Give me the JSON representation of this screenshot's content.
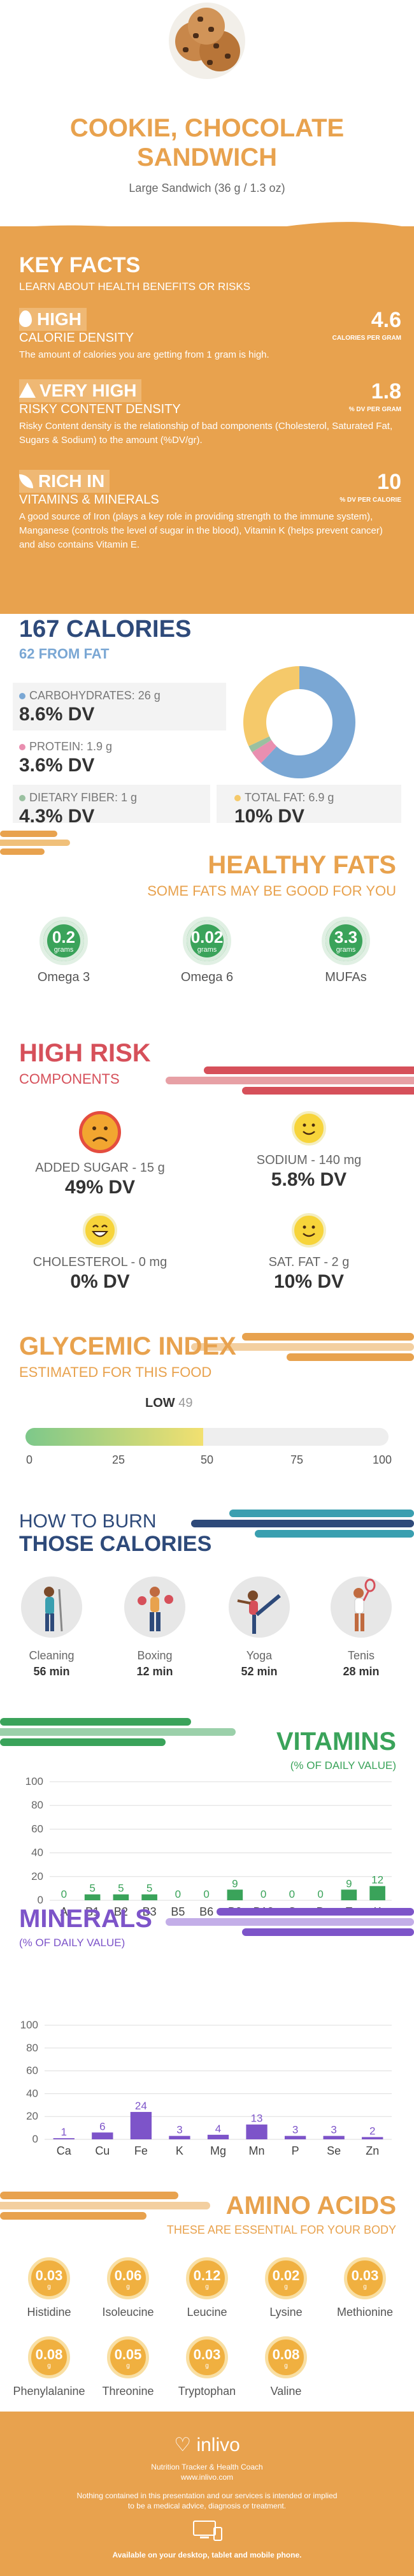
{
  "header": {
    "title_line1": "COOKIE, CHOCOLATE",
    "title_line2": "SANDWICH",
    "serving": "Large Sandwich (36 g / 1.3 oz)"
  },
  "key_facts": {
    "heading": "KEY FACTS",
    "subheading": "LEARN ABOUT HEALTH BENEFITS OR RISKS",
    "facts": [
      {
        "tag": "HIGH",
        "tag2": "CALORIE DENSITY",
        "value": "4.6",
        "unit": "CALORIES PER GRAM",
        "desc": "The amount of calories you are getting from 1 gram is high.",
        "icon": "flame-icon"
      },
      {
        "tag": "VERY HIGH",
        "tag2": "RISKY CONTENT DENSITY",
        "value": "1.8",
        "unit": "% DV PER GRAM",
        "desc": "Risky Content density is the relationship of bad components (Cholesterol, Saturated Fat, Sugars & Sodium) to the amount (%DV/gr).",
        "icon": "warning-icon"
      },
      {
        "tag": "RICH  IN",
        "tag2": "VITAMINS & MINERALS",
        "value": "10",
        "unit": "% DV PER CALORIE",
        "desc": "A good source of Iron (plays a key role in providing strength to the immune system), Manganese (controls the level of sugar in the blood), Vitamin K (helps prevent cancer) and also contains Vitamin E.",
        "icon": "leaf-icon"
      }
    ]
  },
  "calories": {
    "heading": "167 CALORIES",
    "from_fat": "62 FROM FAT",
    "macros": [
      {
        "label": "CARBOHYDRATES: 26 g",
        "dv": "8.6% DV",
        "color": "#7aa7d4"
      },
      {
        "label": "PROTEIN: 1.9 g",
        "dv": "3.6% DV",
        "color": "#e98fb0"
      },
      {
        "label": "DIETARY FIBER: 1 g",
        "dv": "4.3% DV",
        "color": "#9ac0a0"
      },
      {
        "label": "TOTAL FAT: 6.9 g",
        "dv": "10% DV",
        "color": "#f5c96a"
      }
    ],
    "donut": {
      "carbs": 62,
      "protein": 4,
      "fiber": 2,
      "fat": 32
    }
  },
  "healthy_fats": {
    "heading": "HEALTHY FATS",
    "subheading": "SOME FATS MAY BE GOOD FOR YOU",
    "unit": "grams",
    "items": [
      {
        "value": "0.2",
        "label": "Omega 3"
      },
      {
        "value": "0.02",
        "label": "Omega 6"
      },
      {
        "value": "3.3",
        "label": "MUFAs"
      }
    ]
  },
  "high_risk": {
    "heading": "HIGH RISK",
    "subheading": "COMPONENTS",
    "items": [
      {
        "label": "ADDED SUGAR - 15 g",
        "dv": "49% DV",
        "face": "sad"
      },
      {
        "label": "SODIUM - 140 mg",
        "dv": "5.8% DV",
        "face": "happy"
      },
      {
        "label": "CHOLESTEROL - 0 mg",
        "dv": "0% DV",
        "face": "laugh"
      },
      {
        "label": "SAT. FAT - 2 g",
        "dv": "10% DV",
        "face": "happy"
      }
    ]
  },
  "glycemic": {
    "heading": "GLYCEMIC INDEX",
    "subheading": "ESTIMATED FOR THIS FOOD",
    "level": "LOW",
    "value": "49",
    "fraction": 0.49,
    "ticks": [
      "0",
      "25",
      "50",
      "75",
      "100"
    ]
  },
  "burn": {
    "heading1": "HOW TO BURN",
    "heading2": "THOSE CALORIES",
    "activities": [
      {
        "name": "Cleaning",
        "time": "56 min"
      },
      {
        "name": "Boxing",
        "time": "12 min"
      },
      {
        "name": "Yoga",
        "time": "52 min"
      },
      {
        "name": "Tenis",
        "time": "28 min"
      }
    ]
  },
  "vitamins": {
    "heading": "VITAMINS",
    "subheading": "(% OF DAILY VALUE)"
  },
  "minerals": {
    "heading": "MINERALS",
    "subheading": "(% OF DAILY VALUE)"
  },
  "chart_data": [
    {
      "type": "bar",
      "title": "VITAMINS",
      "ylabel": "(% OF DAILY VALUE)",
      "categories": [
        "A",
        "B1",
        "B2",
        "B3",
        "B5",
        "B6",
        "B9",
        "B12",
        "C",
        "D",
        "E",
        "K"
      ],
      "values": [
        0,
        5,
        5,
        5,
        0,
        0,
        9,
        0,
        0,
        0,
        9,
        12
      ],
      "ylim": [
        0,
        100
      ],
      "yticks": [
        "0",
        "20",
        "40",
        "60",
        "80",
        "100"
      ],
      "color": "#3aa35a"
    },
    {
      "type": "bar",
      "title": "MINERALS",
      "ylabel": "(% OF DAILY VALUE)",
      "categories": [
        "Ca",
        "Cu",
        "Fe",
        "K",
        "Mg",
        "Mn",
        "P",
        "Se",
        "Zn"
      ],
      "values": [
        1,
        6,
        24,
        3,
        4,
        13,
        3,
        3,
        2
      ],
      "ylim": [
        0,
        100
      ],
      "yticks": [
        "0",
        "20",
        "40",
        "60",
        "80",
        "100"
      ],
      "color": "#7d54c9"
    }
  ],
  "amino": {
    "heading": "AMINO ACIDS",
    "subheading": "THESE ARE ESSENTIAL FOR YOUR BODY",
    "unit": "g",
    "items": [
      {
        "value": "0.03",
        "label": "Histidine"
      },
      {
        "value": "0.06",
        "label": "Isoleucine"
      },
      {
        "value": "0.12",
        "label": "Leucine"
      },
      {
        "value": "0.02",
        "label": "Lysine"
      },
      {
        "value": "0.03",
        "label": "Methionine"
      },
      {
        "value": "0.08",
        "label": "Phenylalanine"
      },
      {
        "value": "0.05",
        "label": "Threonine"
      },
      {
        "value": "0.03",
        "label": "Tryptophan"
      },
      {
        "value": "0.08",
        "label": "Valine"
      }
    ]
  },
  "footer": {
    "brand": "inlivo",
    "tagline": "Nutrition Tracker & Health Coach",
    "url": "www.inlivo.com",
    "disclaimer1": "Nothing contained in this presentation and our services is intended or implied",
    "disclaimer2": "to be a medical advice, diagnosis or treatment.",
    "available": "Available on your desktop, tablet and mobile phone."
  }
}
